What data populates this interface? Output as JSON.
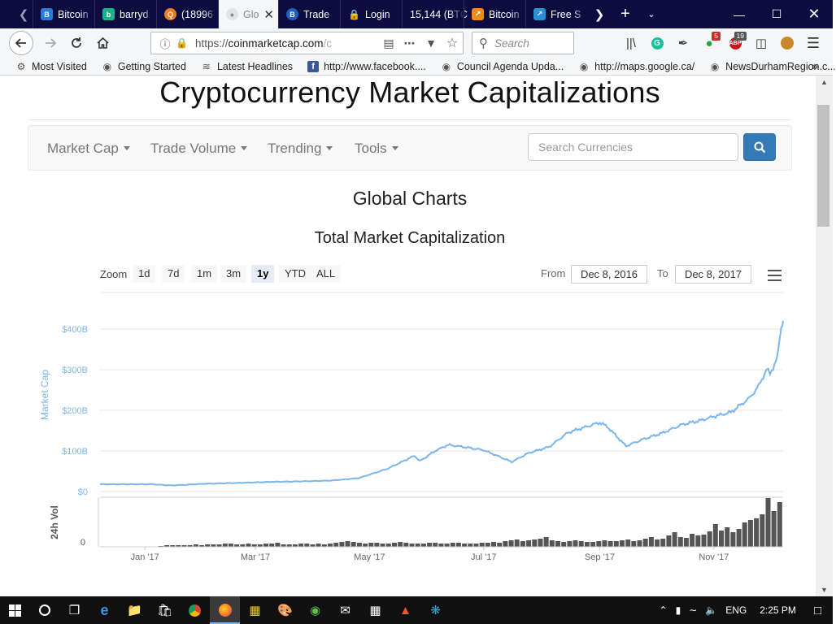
{
  "browser": {
    "tabs": [
      {
        "title": "Bitcoin",
        "color": "#2a7bd8",
        "glyph": "B"
      },
      {
        "title": "barryd",
        "color": "#1bb28a",
        "glyph": "b"
      },
      {
        "title": "(18996",
        "color": "#f07c1e",
        "glyph": "Q"
      },
      {
        "title": "Glo",
        "color": "#f0f0f0",
        "glyph": ""
      },
      {
        "title": "Trade",
        "color": "#1f5fbf",
        "glyph": "B"
      },
      {
        "title": "Login",
        "color": "#2c2c60",
        "glyph": ""
      },
      {
        "title": "15,144 (BTC",
        "color": "",
        "glyph": ""
      },
      {
        "title": "Bitcoin",
        "color": "#f08a1c",
        "glyph": "~"
      },
      {
        "title": "Free S",
        "color": "#2b8fd6",
        "glyph": "~"
      }
    ],
    "url_prefix": "https://",
    "url_domain": "coinmarketcap.com",
    "url_suffix": "/c",
    "search_placeholder": "Search",
    "addon_badges": {
      "green": "5",
      "abp": "19"
    },
    "bookmarks": [
      {
        "label": "Most Visited",
        "icon": "gear"
      },
      {
        "label": "Getting Started",
        "icon": "globe"
      },
      {
        "label": "Latest Headlines",
        "icon": "rss"
      },
      {
        "label": "http://www.facebook....",
        "icon": "facebook"
      },
      {
        "label": "Council Agenda Upda...",
        "icon": "globe"
      },
      {
        "label": "http://maps.google.ca/",
        "icon": "globe"
      },
      {
        "label": "NewsDurhamRegion.c...",
        "icon": "globe"
      }
    ]
  },
  "page": {
    "title": "Cryptocurrency Market Capitalizations",
    "nav": [
      "Market Cap",
      "Trade Volume",
      "Trending",
      "Tools"
    ],
    "search_placeholder": "Search Currencies",
    "section_title": "Global Charts",
    "chart_title": "Total Market Capitalization",
    "zoom_label": "Zoom",
    "zoom_buttons": [
      "1d",
      "7d",
      "1m",
      "3m",
      "1y",
      "YTD",
      "ALL"
    ],
    "zoom_selected": "1y",
    "from_label": "From",
    "from_date": "Dec 8, 2016",
    "to_label": "To",
    "to_date": "Dec 8, 2017"
  },
  "chart_data": {
    "type": "line",
    "title": "Total Market Capitalization",
    "ylabel": "Market Cap",
    "volume_label": "24h Vol",
    "ylim": [
      0,
      450
    ],
    "unit": "B",
    "yticks": [
      "$0",
      "$100B",
      "$200B",
      "$300B",
      "$400B"
    ],
    "volume_ticks": [
      "0"
    ],
    "xticks": [
      "Jan '17",
      "Mar '17",
      "May '17",
      "Jul '17",
      "Sep '17",
      "Nov '17"
    ],
    "grid": true,
    "series": [
      {
        "x": [
          "2016-12-08",
          "2017-01-05",
          "2017-01-15",
          "2017-02-01",
          "2017-02-25",
          "2017-03-10",
          "2017-03-25",
          "2017-04-10",
          "2017-04-25",
          "2017-05-10",
          "2017-05-25",
          "2017-05-28",
          "2017-06-05",
          "2017-06-12",
          "2017-06-20",
          "2017-07-01",
          "2017-07-16",
          "2017-07-25",
          "2017-08-05",
          "2017-08-15",
          "2017-09-01",
          "2017-09-05",
          "2017-09-15",
          "2017-09-25",
          "2017-10-05",
          "2017-10-15",
          "2017-10-25",
          "2017-11-01",
          "2017-11-10",
          "2017-11-20",
          "2017-11-25",
          "2017-11-29",
          "2017-12-01",
          "2017-12-05",
          "2017-12-07",
          "2017-12-08"
        ],
        "values": [
          18,
          18,
          15,
          19,
          22,
          24,
          25,
          27,
          33,
          55,
          88,
          75,
          100,
          115,
          110,
          102,
          73,
          95,
          110,
          145,
          170,
          160,
          112,
          130,
          145,
          165,
          175,
          185,
          195,
          230,
          260,
          300,
          290,
          330,
          410,
          420
        ]
      }
    ],
    "volume_values": [
      0,
      0,
      0,
      0,
      0,
      0,
      0,
      0,
      0,
      0.5,
      1,
      2,
      2,
      2,
      2,
      2,
      3,
      2,
      3,
      3,
      3,
      4,
      4,
      3,
      3,
      4,
      3,
      3,
      4,
      4,
      5,
      3,
      3,
      3,
      4,
      4,
      3,
      4,
      3,
      4,
      5,
      6,
      7,
      6,
      5,
      4,
      5,
      5,
      4,
      4,
      5,
      6,
      5,
      4,
      4,
      4,
      5,
      5,
      4,
      4,
      5,
      5,
      4,
      4,
      4,
      5,
      5,
      6,
      5,
      7,
      8,
      9,
      7,
      8,
      9,
      10,
      12,
      8,
      7,
      6,
      7,
      8,
      7,
      6,
      6,
      7,
      8,
      7,
      7,
      8,
      9,
      7,
      8,
      10,
      12,
      9,
      10,
      14,
      18,
      12,
      11,
      16,
      14,
      15,
      19,
      28,
      20,
      24,
      18,
      22,
      30,
      33,
      35,
      40,
      60,
      44,
      55
    ]
  },
  "taskbar": {
    "language": "ENG",
    "time": "2:25 PM"
  }
}
